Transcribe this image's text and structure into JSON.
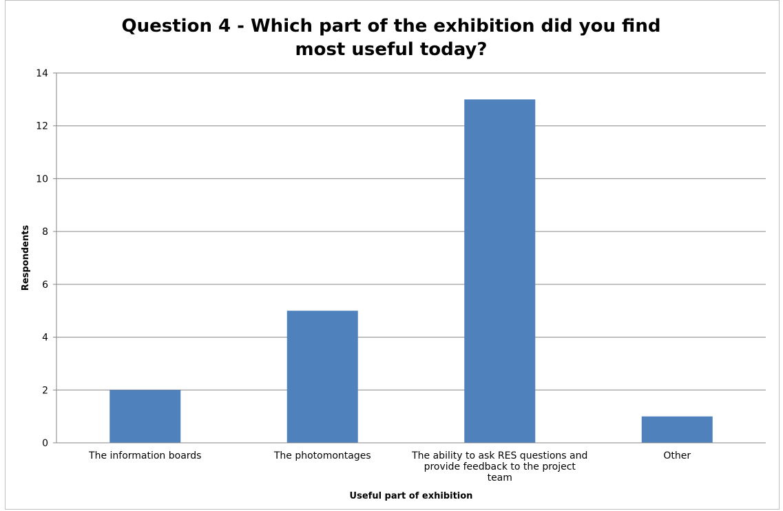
{
  "chart_data": {
    "type": "bar",
    "title": "Question 4 - Which part of the exhibition did you find most useful today?",
    "xlabel": "Useful part of exhibition",
    "ylabel": "Respondents",
    "categories": [
      [
        "The information boards"
      ],
      [
        "The photomontages"
      ],
      [
        "The ability to ask RES questions and",
        "provide feedback to the project",
        "team"
      ],
      [
        "Other"
      ]
    ],
    "values": [
      2,
      5,
      13,
      1
    ],
    "ylim": [
      0,
      14
    ],
    "yticks": [
      0,
      2,
      4,
      6,
      8,
      10,
      12,
      14
    ],
    "grid": true,
    "legend": "none",
    "colors": {
      "bar": "#4f81bd",
      "grid": "#868686",
      "axis": "#868686",
      "text": "#000000"
    }
  }
}
